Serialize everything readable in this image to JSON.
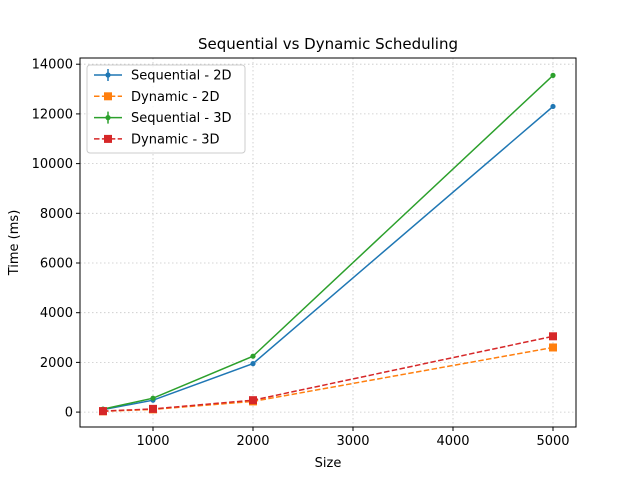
{
  "chart_data": {
    "type": "line",
    "title": "Sequential vs Dynamic Scheduling",
    "xlabel": "Size",
    "ylabel": "Time (ms)",
    "xlim": [
      270,
      5230
    ],
    "ylim": [
      -600,
      14250
    ],
    "xticks": [
      1000,
      2000,
      3000,
      4000,
      5000
    ],
    "yticks": [
      0,
      2000,
      4000,
      6000,
      8000,
      10000,
      12000,
      14000
    ],
    "grid": true,
    "legend_position": "upper-left",
    "x": [
      500,
      1000,
      2000,
      5000
    ],
    "series": [
      {
        "name": "Sequential - 2D",
        "values": [
          100,
          480,
          1950,
          12300
        ],
        "color": "#1f77b4",
        "linestyle": "solid",
        "marker": "circle"
      },
      {
        "name": "Dynamic - 2D",
        "values": [
          30,
          110,
          430,
          2600
        ],
        "color": "#ff7f0e",
        "linestyle": "dashed",
        "marker": "square"
      },
      {
        "name": "Sequential - 3D",
        "values": [
          120,
          560,
          2250,
          13550
        ],
        "color": "#2ca02c",
        "linestyle": "solid",
        "marker": "circle"
      },
      {
        "name": "Dynamic - 3D",
        "values": [
          40,
          130,
          480,
          3050
        ],
        "color": "#d62728",
        "linestyle": "dashed",
        "marker": "square"
      }
    ]
  }
}
